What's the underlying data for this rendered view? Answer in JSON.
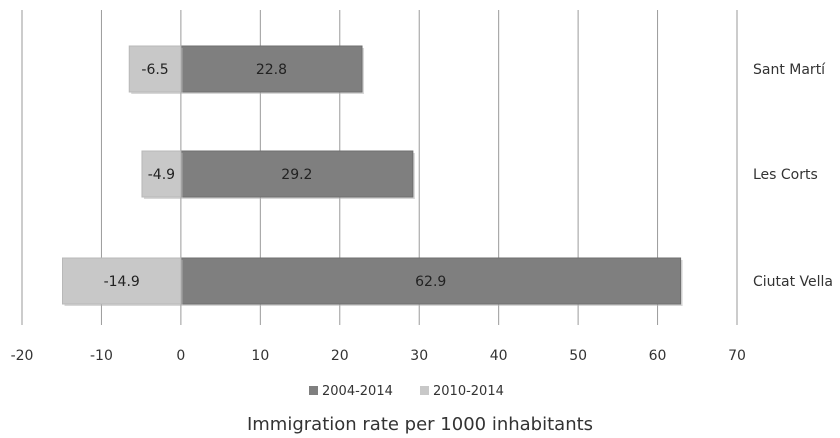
{
  "chart_data": {
    "type": "bar",
    "orientation": "horizontal",
    "stacked": true,
    "categories": [
      "Ciutat Vella",
      "Les Corts",
      "Sant Martí"
    ],
    "series": [
      {
        "name": "2004-2014",
        "values": [
          62.9,
          29.2,
          22.8
        ],
        "labels": [
          "62.9",
          "29.2",
          "22.8"
        ],
        "color": "#7f7f7f"
      },
      {
        "name": "2010-2014",
        "values": [
          -14.9,
          -4.9,
          -6.5
        ],
        "labels": [
          "-14.9",
          "-4.9",
          "-6.5"
        ],
        "color": "#c8c8c8"
      }
    ],
    "xlim": [
      -20,
      70
    ],
    "xticks": [
      "-20",
      "-10",
      "0",
      "10",
      "20",
      "30",
      "40",
      "50",
      "60",
      "70"
    ],
    "xlabel": "Immigration rate per 1000 inhabitants",
    "ylabel": "",
    "title": "",
    "grid": "vertical",
    "legend_position": "bottom"
  }
}
